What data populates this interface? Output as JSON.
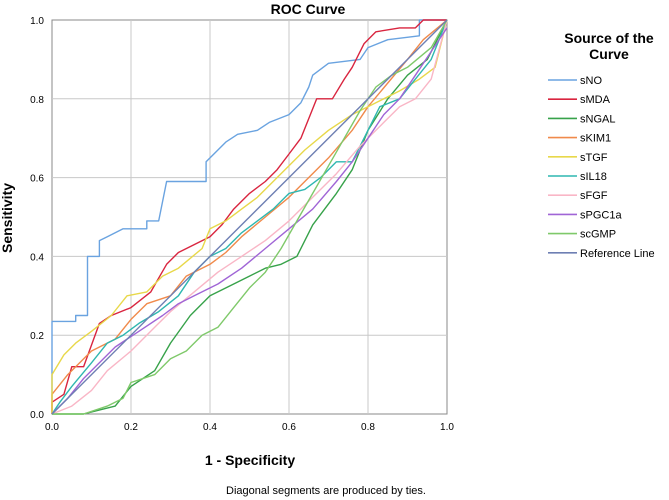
{
  "chart_data": {
    "type": "line",
    "title": "ROC Curve",
    "xlabel": "1 - Specificity",
    "ylabel": "Sensitivity",
    "xlim": [
      0,
      1
    ],
    "ylim": [
      0,
      1
    ],
    "x_ticks": [
      "0.0",
      "0.2",
      "0.4",
      "0.6",
      "0.8",
      "1.0"
    ],
    "y_ticks": [
      "0.0",
      "0.2",
      "0.4",
      "0.6",
      "0.8",
      "1.0"
    ],
    "grid": true,
    "legend_position": "right",
    "legend_title": "Source of the Curve",
    "footnote": "Diagonal segments are produced by ties.",
    "series": [
      {
        "name": "sNO",
        "color": "#6aa3e0",
        "points": [
          [
            0,
            0
          ],
          [
            0,
            0.235
          ],
          [
            0.06,
            0.235
          ],
          [
            0.06,
            0.25
          ],
          [
            0.09,
            0.25
          ],
          [
            0.09,
            0.4
          ],
          [
            0.12,
            0.4
          ],
          [
            0.12,
            0.44
          ],
          [
            0.14,
            0.45
          ],
          [
            0.16,
            0.46
          ],
          [
            0.18,
            0.47
          ],
          [
            0.24,
            0.47
          ],
          [
            0.24,
            0.49
          ],
          [
            0.27,
            0.49
          ],
          [
            0.29,
            0.59
          ],
          [
            0.39,
            0.59
          ],
          [
            0.39,
            0.64
          ],
          [
            0.41,
            0.66
          ],
          [
            0.44,
            0.69
          ],
          [
            0.47,
            0.71
          ],
          [
            0.52,
            0.72
          ],
          [
            0.55,
            0.74
          ],
          [
            0.6,
            0.76
          ],
          [
            0.63,
            0.79
          ],
          [
            0.65,
            0.83
          ],
          [
            0.66,
            0.86
          ],
          [
            0.7,
            0.89
          ],
          [
            0.78,
            0.9
          ],
          [
            0.8,
            0.93
          ],
          [
            0.85,
            0.95
          ],
          [
            0.93,
            0.96
          ],
          [
            0.93,
            1.0
          ],
          [
            1.0,
            1.0
          ]
        ]
      },
      {
        "name": "sMDA",
        "color": "#d9253f",
        "points": [
          [
            0,
            0
          ],
          [
            0,
            0.03
          ],
          [
            0.03,
            0.05
          ],
          [
            0.05,
            0.12
          ],
          [
            0.08,
            0.12
          ],
          [
            0.12,
            0.23
          ],
          [
            0.15,
            0.25
          ],
          [
            0.2,
            0.27
          ],
          [
            0.25,
            0.31
          ],
          [
            0.29,
            0.38
          ],
          [
            0.32,
            0.41
          ],
          [
            0.36,
            0.43
          ],
          [
            0.4,
            0.45
          ],
          [
            0.43,
            0.48
          ],
          [
            0.46,
            0.52
          ],
          [
            0.5,
            0.56
          ],
          [
            0.54,
            0.59
          ],
          [
            0.57,
            0.62
          ],
          [
            0.6,
            0.66
          ],
          [
            0.63,
            0.7
          ],
          [
            0.65,
            0.75
          ],
          [
            0.67,
            0.8
          ],
          [
            0.71,
            0.8
          ],
          [
            0.74,
            0.85
          ],
          [
            0.76,
            0.88
          ],
          [
            0.79,
            0.94
          ],
          [
            0.82,
            0.97
          ],
          [
            0.88,
            0.98
          ],
          [
            0.92,
            0.98
          ],
          [
            0.94,
            1.0
          ],
          [
            1.0,
            1.0
          ]
        ]
      },
      {
        "name": "sNGAL",
        "color": "#37a24a",
        "points": [
          [
            0,
            0
          ],
          [
            0.08,
            0
          ],
          [
            0.16,
            0.02
          ],
          [
            0.2,
            0.07
          ],
          [
            0.26,
            0.11
          ],
          [
            0.3,
            0.18
          ],
          [
            0.35,
            0.25
          ],
          [
            0.4,
            0.3
          ],
          [
            0.46,
            0.33
          ],
          [
            0.5,
            0.35
          ],
          [
            0.54,
            0.37
          ],
          [
            0.58,
            0.38
          ],
          [
            0.62,
            0.4
          ],
          [
            0.66,
            0.48
          ],
          [
            0.72,
            0.56
          ],
          [
            0.76,
            0.62
          ],
          [
            0.8,
            0.72
          ],
          [
            0.85,
            0.8
          ],
          [
            0.9,
            0.86
          ],
          [
            0.95,
            0.9
          ],
          [
            1.0,
            1.0
          ]
        ]
      },
      {
        "name": "sKIM1",
        "color": "#f08a4b",
        "points": [
          [
            0,
            0
          ],
          [
            0,
            0.05
          ],
          [
            0.04,
            0.1
          ],
          [
            0.1,
            0.16
          ],
          [
            0.16,
            0.19
          ],
          [
            0.2,
            0.24
          ],
          [
            0.24,
            0.28
          ],
          [
            0.3,
            0.3
          ],
          [
            0.34,
            0.35
          ],
          [
            0.4,
            0.38
          ],
          [
            0.44,
            0.41
          ],
          [
            0.48,
            0.45
          ],
          [
            0.54,
            0.5
          ],
          [
            0.6,
            0.55
          ],
          [
            0.64,
            0.59
          ],
          [
            0.7,
            0.65
          ],
          [
            0.76,
            0.72
          ],
          [
            0.8,
            0.78
          ],
          [
            0.85,
            0.84
          ],
          [
            0.9,
            0.9
          ],
          [
            0.94,
            0.95
          ],
          [
            1.0,
            1.0
          ]
        ]
      },
      {
        "name": "sTGF",
        "color": "#e8d84a",
        "points": [
          [
            0,
            0
          ],
          [
            0,
            0.1
          ],
          [
            0.03,
            0.15
          ],
          [
            0.06,
            0.18
          ],
          [
            0.1,
            0.21
          ],
          [
            0.15,
            0.25
          ],
          [
            0.19,
            0.3
          ],
          [
            0.24,
            0.31
          ],
          [
            0.28,
            0.35
          ],
          [
            0.32,
            0.37
          ],
          [
            0.38,
            0.42
          ],
          [
            0.4,
            0.47
          ],
          [
            0.44,
            0.49
          ],
          [
            0.48,
            0.52
          ],
          [
            0.52,
            0.55
          ],
          [
            0.56,
            0.59
          ],
          [
            0.6,
            0.63
          ],
          [
            0.64,
            0.67
          ],
          [
            0.7,
            0.72
          ],
          [
            0.76,
            0.76
          ],
          [
            0.82,
            0.79
          ],
          [
            0.88,
            0.82
          ],
          [
            0.93,
            0.85
          ],
          [
            0.97,
            0.88
          ],
          [
            1.0,
            1.0
          ]
        ]
      },
      {
        "name": "sIL18",
        "color": "#2fb7b0",
        "points": [
          [
            0,
            0
          ],
          [
            0.02,
            0.03
          ],
          [
            0.05,
            0.07
          ],
          [
            0.1,
            0.13
          ],
          [
            0.14,
            0.18
          ],
          [
            0.18,
            0.2
          ],
          [
            0.22,
            0.23
          ],
          [
            0.27,
            0.26
          ],
          [
            0.32,
            0.3
          ],
          [
            0.36,
            0.36
          ],
          [
            0.4,
            0.4
          ],
          [
            0.44,
            0.42
          ],
          [
            0.48,
            0.46
          ],
          [
            0.52,
            0.49
          ],
          [
            0.56,
            0.52
          ],
          [
            0.6,
            0.56
          ],
          [
            0.64,
            0.57
          ],
          [
            0.68,
            0.6
          ],
          [
            0.72,
            0.64
          ],
          [
            0.76,
            0.64
          ],
          [
            0.8,
            0.72
          ],
          [
            0.83,
            0.78
          ],
          [
            0.88,
            0.8
          ],
          [
            0.92,
            0.85
          ],
          [
            0.96,
            0.9
          ],
          [
            1.0,
            1.0
          ]
        ]
      },
      {
        "name": "sFGF",
        "color": "#f9b6c6",
        "points": [
          [
            0,
            0
          ],
          [
            0.05,
            0.02
          ],
          [
            0.1,
            0.06
          ],
          [
            0.14,
            0.11
          ],
          [
            0.2,
            0.16
          ],
          [
            0.26,
            0.22
          ],
          [
            0.3,
            0.26
          ],
          [
            0.36,
            0.31
          ],
          [
            0.42,
            0.36
          ],
          [
            0.48,
            0.4
          ],
          [
            0.54,
            0.44
          ],
          [
            0.6,
            0.49
          ],
          [
            0.66,
            0.55
          ],
          [
            0.72,
            0.61
          ],
          [
            0.78,
            0.68
          ],
          [
            0.84,
            0.74
          ],
          [
            0.88,
            0.78
          ],
          [
            0.92,
            0.8
          ],
          [
            0.96,
            0.85
          ],
          [
            1.0,
            1.0
          ]
        ]
      },
      {
        "name": "sPGC1a",
        "color": "#a065d6",
        "points": [
          [
            0,
            0
          ],
          [
            0.04,
            0.04
          ],
          [
            0.08,
            0.09
          ],
          [
            0.12,
            0.13
          ],
          [
            0.16,
            0.17
          ],
          [
            0.22,
            0.21
          ],
          [
            0.28,
            0.25
          ],
          [
            0.32,
            0.28
          ],
          [
            0.36,
            0.3
          ],
          [
            0.42,
            0.33
          ],
          [
            0.48,
            0.37
          ],
          [
            0.54,
            0.42
          ],
          [
            0.6,
            0.47
          ],
          [
            0.66,
            0.52
          ],
          [
            0.72,
            0.59
          ],
          [
            0.76,
            0.64
          ],
          [
            0.8,
            0.7
          ],
          [
            0.84,
            0.76
          ],
          [
            0.88,
            0.8
          ],
          [
            0.92,
            0.86
          ],
          [
            0.96,
            0.92
          ],
          [
            1.0,
            0.98
          ]
        ]
      },
      {
        "name": "scGMP",
        "color": "#7fc96a",
        "points": [
          [
            0,
            0
          ],
          [
            0.08,
            0
          ],
          [
            0.14,
            0.02
          ],
          [
            0.18,
            0.04
          ],
          [
            0.2,
            0.08
          ],
          [
            0.26,
            0.1
          ],
          [
            0.3,
            0.14
          ],
          [
            0.34,
            0.16
          ],
          [
            0.38,
            0.2
          ],
          [
            0.42,
            0.22
          ],
          [
            0.46,
            0.27
          ],
          [
            0.5,
            0.32
          ],
          [
            0.54,
            0.36
          ],
          [
            0.58,
            0.42
          ],
          [
            0.62,
            0.49
          ],
          [
            0.66,
            0.56
          ],
          [
            0.7,
            0.63
          ],
          [
            0.74,
            0.7
          ],
          [
            0.78,
            0.77
          ],
          [
            0.82,
            0.83
          ],
          [
            0.86,
            0.86
          ],
          [
            0.9,
            0.88
          ],
          [
            0.96,
            0.93
          ],
          [
            1.0,
            1.0
          ]
        ]
      },
      {
        "name": "Reference Line",
        "color": "#6e7fb3",
        "points": [
          [
            0,
            0
          ],
          [
            1,
            1
          ]
        ]
      }
    ]
  }
}
